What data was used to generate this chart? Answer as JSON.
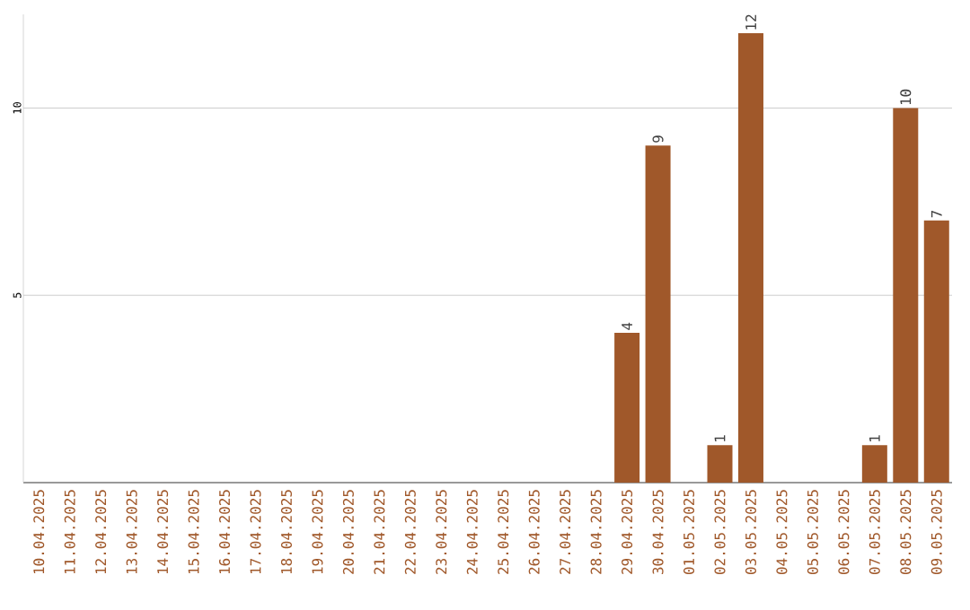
{
  "chart_data": {
    "type": "bar",
    "categories": [
      "10.04.2025",
      "11.04.2025",
      "12.04.2025",
      "13.04.2025",
      "14.04.2025",
      "15.04.2025",
      "16.04.2025",
      "17.04.2025",
      "18.04.2025",
      "19.04.2025",
      "20.04.2025",
      "21.04.2025",
      "22.04.2025",
      "23.04.2025",
      "24.04.2025",
      "25.04.2025",
      "26.04.2025",
      "27.04.2025",
      "28.04.2025",
      "29.04.2025",
      "30.04.2025",
      "01.05.2025",
      "02.05.2025",
      "03.05.2025",
      "04.05.2025",
      "05.05.2025",
      "06.05.2025",
      "07.05.2025",
      "08.05.2025",
      "09.05.2025"
    ],
    "values": [
      0,
      0,
      0,
      0,
      0,
      0,
      0,
      0,
      0,
      0,
      0,
      0,
      0,
      0,
      0,
      0,
      0,
      0,
      0,
      4,
      9,
      0,
      1,
      12,
      0,
      0,
      0,
      1,
      10,
      7
    ],
    "value_labels": [
      null,
      null,
      null,
      null,
      null,
      null,
      null,
      null,
      null,
      null,
      null,
      null,
      null,
      null,
      null,
      null,
      null,
      null,
      null,
      "4",
      "9",
      null,
      "1",
      "12",
      null,
      null,
      null,
      "1",
      "10",
      "7"
    ],
    "color": "#a0582a",
    "ylim": [
      0,
      12.5
    ],
    "yticks": [
      5,
      10
    ],
    "grid": "y"
  }
}
